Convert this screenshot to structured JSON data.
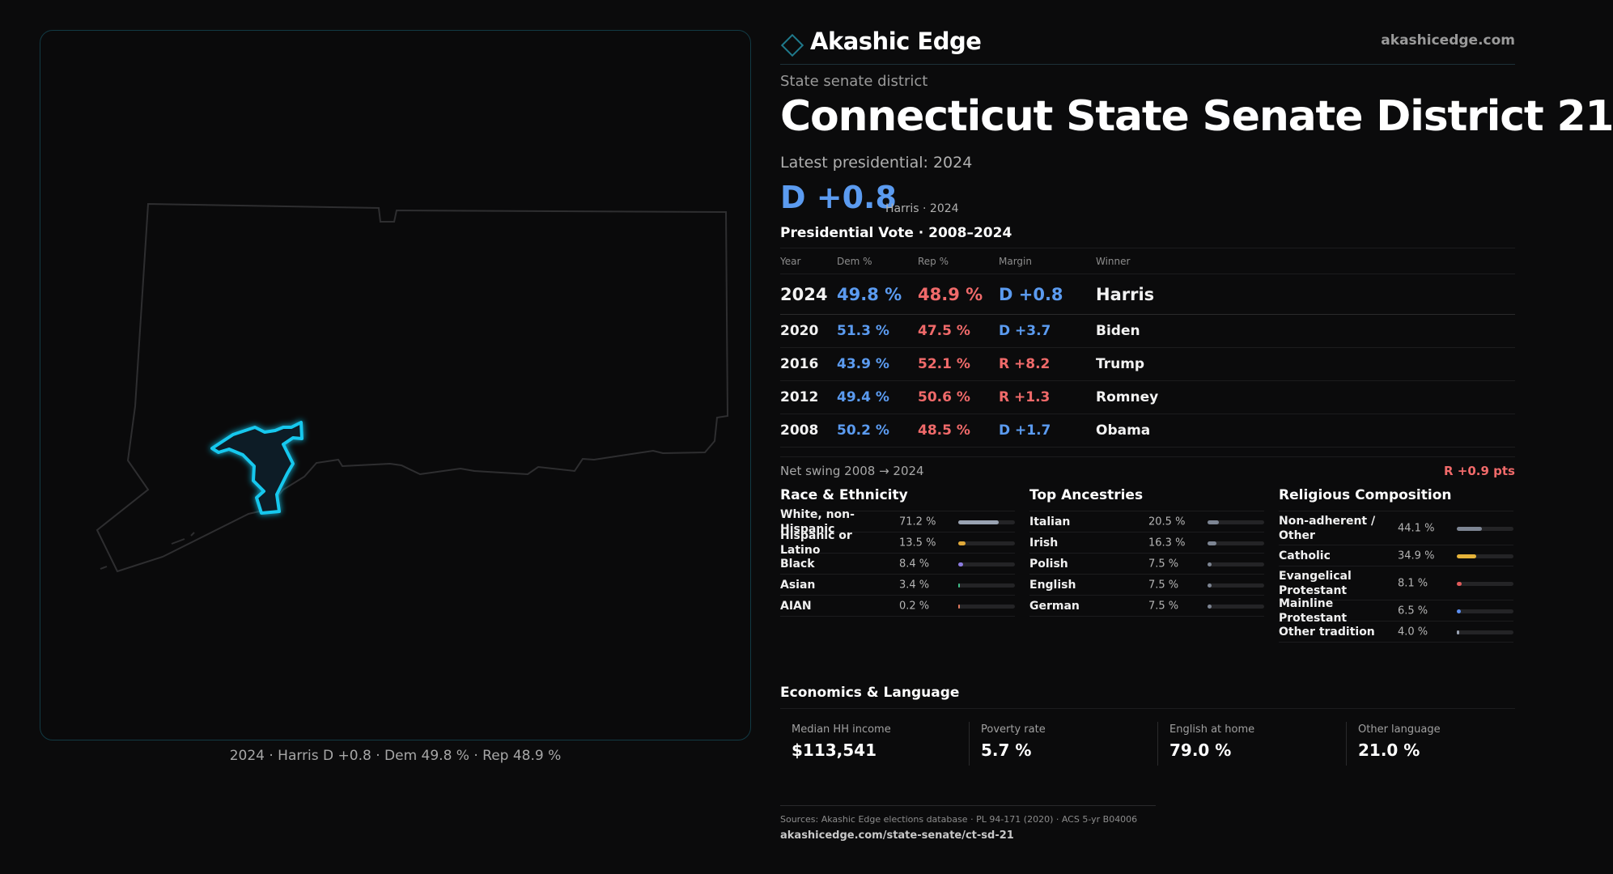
{
  "map": {
    "caption": "2024 · Harris D +0.8 · Dem 49.8 % · Rep 48.9 %"
  },
  "header": {
    "brand": "Akashic Edge",
    "url": "akashicedge.com",
    "eyebrow": "State senate district",
    "title": "Connecticut State Senate District 21",
    "latest_label": "Latest presidential: 2024",
    "margin": "D +0.8",
    "margin_sub": "Harris · 2024",
    "vote_title": "Presidential Vote · 2008–2024"
  },
  "colors": {
    "dem": "#5b9bf0",
    "rep": "#f06a6a",
    "district_outline": "#16c8ee",
    "accent": "#1f7a8c"
  },
  "chart_data": {
    "type": "table",
    "columns": [
      "Year",
      "Dem %",
      "Rep %",
      "Margin",
      "Winner"
    ],
    "rows": [
      {
        "year": "2024",
        "dem": "49.8 %",
        "rep": "48.9 %",
        "margin": "D +0.8",
        "party": "D",
        "winner": "Harris"
      },
      {
        "year": "2020",
        "dem": "51.3 %",
        "rep": "47.5 %",
        "margin": "D +3.7",
        "party": "D",
        "winner": "Biden"
      },
      {
        "year": "2016",
        "dem": "43.9 %",
        "rep": "52.1 %",
        "margin": "R +8.2",
        "party": "R",
        "winner": "Trump"
      },
      {
        "year": "2012",
        "dem": "49.4 %",
        "rep": "50.6 %",
        "margin": "R +1.3",
        "party": "R",
        "winner": "Romney"
      },
      {
        "year": "2008",
        "dem": "50.2 %",
        "rep": "48.5 %",
        "margin": "D +1.7",
        "party": "D",
        "winner": "Obama"
      }
    ]
  },
  "swing": {
    "label": "Net swing 2008 → 2024",
    "value": "R +0.9 pts"
  },
  "race": {
    "title": "Race & Ethnicity",
    "items": [
      {
        "label": "White, non-Hispanic",
        "value": "71.2 %",
        "pct": 71.2,
        "color": "#9aa3b2"
      },
      {
        "label": "Hispanic or Latino",
        "value": "13.5 %",
        "pct": 13.5,
        "color": "#e0a93a"
      },
      {
        "label": "Black",
        "value": "8.4 %",
        "pct": 8.4,
        "color": "#8b7be0"
      },
      {
        "label": "Asian",
        "value": "3.4 %",
        "pct": 3.4,
        "color": "#3fbf8a"
      },
      {
        "label": "AIAN",
        "value": "0.2 %",
        "pct": 0.2,
        "color": "#e07a5f"
      }
    ]
  },
  "ancestry": {
    "title": "Top Ancestries",
    "items": [
      {
        "label": "Italian",
        "value": "20.5 %",
        "pct": 20.5,
        "color": "#7d8593"
      },
      {
        "label": "Irish",
        "value": "16.3 %",
        "pct": 16.3,
        "color": "#7d8593"
      },
      {
        "label": "Polish",
        "value": "7.5 %",
        "pct": 7.5,
        "color": "#7d8593"
      },
      {
        "label": "English",
        "value": "7.5 %",
        "pct": 7.5,
        "color": "#7d8593"
      },
      {
        "label": "German",
        "value": "7.5 %",
        "pct": 7.5,
        "color": "#7d8593"
      }
    ]
  },
  "religion": {
    "title": "Religious Composition",
    "items": [
      {
        "label": "Non-adherent / Other",
        "value": "44.1 %",
        "pct": 44.1,
        "color": "#7d8593"
      },
      {
        "label": "Catholic",
        "value": "34.9 %",
        "pct": 34.9,
        "color": "#e5b33a"
      },
      {
        "label": "Evangelical Protestant",
        "value": "8.1 %",
        "pct": 8.1,
        "color": "#e05a5a"
      },
      {
        "label": "Mainline Protestant",
        "value": "6.5 %",
        "pct": 6.5,
        "color": "#5b8ef0"
      },
      {
        "label": "Other tradition",
        "value": "4.0 %",
        "pct": 4.0,
        "color": "#9aa3b2"
      }
    ]
  },
  "economics": {
    "title": "Economics & Language",
    "items": [
      {
        "label": "Median HH income",
        "value": "$113,541"
      },
      {
        "label": "Poverty rate",
        "value": "5.7 %"
      },
      {
        "label": "English at home",
        "value": "79.0 %"
      },
      {
        "label": "Other language",
        "value": "21.0 %"
      }
    ]
  },
  "sources": {
    "line": "Sources: Akashic Edge elections database · PL 94-171 (2020) · ACS 5-yr B04006",
    "url": "akashicedge.com/state-senate/ct-sd-21"
  }
}
